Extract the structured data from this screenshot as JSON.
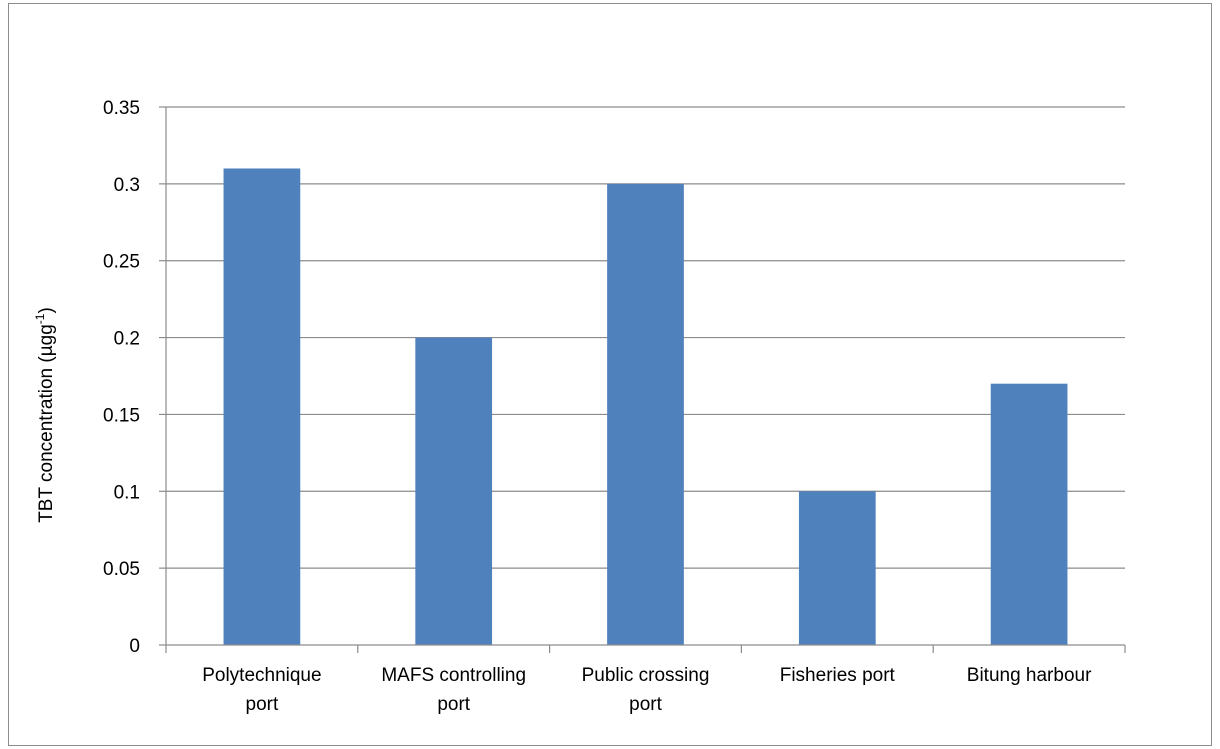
{
  "chart_data": {
    "type": "bar",
    "categories": [
      [
        "Polytechnique",
        "port"
      ],
      [
        "MAFS controlling",
        "port"
      ],
      [
        "Public crossing",
        "port"
      ],
      [
        "Fisheries port"
      ],
      [
        "Bitung harbour"
      ]
    ],
    "values": [
      0.31,
      0.2,
      0.3,
      0.1,
      0.17
    ],
    "title": "",
    "xlabel": "",
    "ylabel": "TBT concentration (µgg",
    "ylabel_superscript": "-1",
    "ylabel_suffix": ")",
    "ylim": [
      0,
      0.35
    ],
    "yticks": [
      "0",
      "0.05",
      "0.1",
      "0.15",
      "0.2",
      "0.25",
      "0.3",
      "0.35"
    ],
    "grid": true,
    "bar_color": "#4f81bd",
    "grid_color": "#8c8c8c"
  }
}
